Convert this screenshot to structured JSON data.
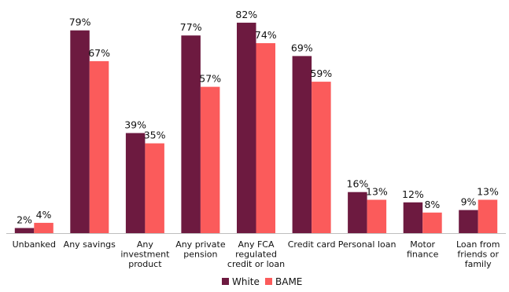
{
  "chart_data": {
    "type": "bar",
    "title": "",
    "xlabel": "",
    "ylabel": "",
    "ylim": [
      0,
      90
    ],
    "grid": false,
    "legend_position": "bottom-center",
    "categories": [
      "Unbanked",
      "Any savings",
      "Any investment product",
      "Any private pension",
      "Any FCA regulated credit or loan",
      "Credit card",
      "Personal loan",
      "Motor finance",
      "Loan from friends or family"
    ],
    "category_lines": [
      [
        "Unbanked"
      ],
      [
        "Any savings"
      ],
      [
        "Any",
        "investment",
        "product"
      ],
      [
        "Any private",
        "pension"
      ],
      [
        "Any FCA",
        "regulated",
        "credit or loan"
      ],
      [
        "Credit card"
      ],
      [
        "Personal loan"
      ],
      [
        "Motor",
        "finance"
      ],
      [
        "Loan from",
        "friends or",
        "family"
      ]
    ],
    "series": [
      {
        "name": "White",
        "color": "#6d1a40",
        "values": [
          2,
          79,
          39,
          77,
          82,
          69,
          16,
          12,
          9
        ],
        "labels": [
          "2%",
          "79%",
          "39%",
          "77%",
          "82%",
          "69%",
          "16%",
          "12%",
          "9%"
        ]
      },
      {
        "name": "BAME",
        "color": "#fb5b5b",
        "values": [
          4,
          67,
          35,
          57,
          74,
          59,
          13,
          8,
          13
        ],
        "labels": [
          "4%",
          "67%",
          "35%",
          "57%",
          "74%",
          "59%",
          "13%",
          "8%",
          "13%"
        ]
      }
    ],
    "axis_color": "#bfbfbf"
  }
}
